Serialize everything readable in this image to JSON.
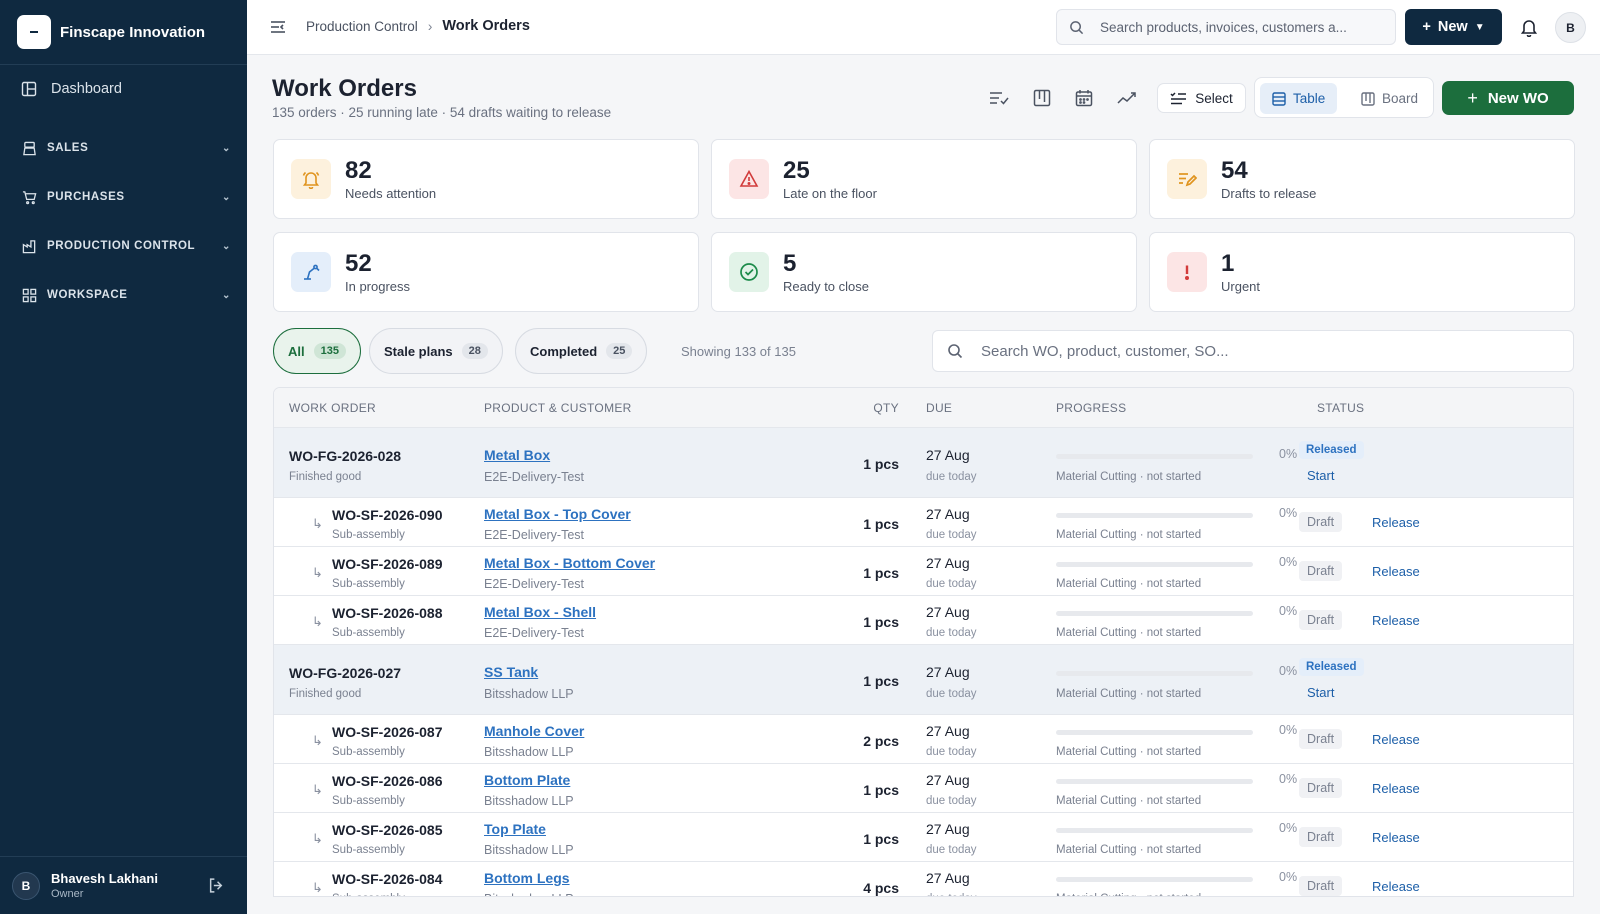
{
  "sidebar": {
    "brand": "Finscape Innovation",
    "dashboard": "Dashboard",
    "sections": [
      "SALES",
      "PURCHASES",
      "PRODUCTION CONTROL",
      "WORKSPACE"
    ],
    "user": {
      "initial": "B",
      "name": "Bhavesh Lakhani",
      "role": "Owner"
    }
  },
  "topbar": {
    "breadcrumb": [
      "Production Control",
      "Work Orders"
    ],
    "search_placeholder": "Search products, invoices, customers a...",
    "new_label": "New",
    "avatar": "B"
  },
  "header": {
    "title": "Work Orders",
    "subtitle": "135 orders · 25 running late · 54 drafts waiting to release",
    "select_label": "Select",
    "view_table": "Table",
    "view_board": "Board",
    "new_wo": "New WO"
  },
  "stats": [
    {
      "value": "82",
      "label": "Needs attention",
      "icon": "bell-icon"
    },
    {
      "value": "25",
      "label": "Late on the floor",
      "icon": "warning-icon"
    },
    {
      "value": "54",
      "label": "Drafts to release",
      "icon": "edit-list-icon"
    },
    {
      "value": "52",
      "label": "In progress",
      "icon": "machine-icon"
    },
    {
      "value": "5",
      "label": "Ready to close",
      "icon": "check-circle-icon"
    },
    {
      "value": "1",
      "label": "Urgent",
      "icon": "exclamation-icon"
    }
  ],
  "filters": {
    "chips": [
      {
        "label": "All",
        "count": "135"
      },
      {
        "label": "Stale plans",
        "count": "28"
      },
      {
        "label": "Completed",
        "count": "25"
      }
    ],
    "showing": "Showing 133 of 135",
    "search_placeholder": "Search WO, product, customer, SO..."
  },
  "table": {
    "columns": [
      "WORK ORDER",
      "PRODUCT & CUSTOMER",
      "QTY",
      "DUE",
      "PROGRESS",
      "STATUS"
    ],
    "rows": [
      {
        "wo": "WO-FG-2026-028",
        "type": "Finished good",
        "product": "Metal Box",
        "customer": "E2E-Delivery-Test",
        "qty": "1 pcs",
        "due": "27 Aug",
        "due_sub": "due today",
        "pct": "0%",
        "stage": "Material Cutting · not started",
        "status": "Released",
        "action": "Start"
      },
      {
        "wo": "WO-SF-2026-090",
        "type": "Sub-assembly",
        "product": "Metal Box - Top Cover",
        "customer": "E2E-Delivery-Test",
        "qty": "1 pcs",
        "due": "27 Aug",
        "due_sub": "due today",
        "pct": "0%",
        "stage": "Material Cutting · not started",
        "status": "Draft",
        "action": "Release"
      },
      {
        "wo": "WO-SF-2026-089",
        "type": "Sub-assembly",
        "product": "Metal Box - Bottom Cover",
        "customer": "E2E-Delivery-Test",
        "qty": "1 pcs",
        "due": "27 Aug",
        "due_sub": "due today",
        "pct": "0%",
        "stage": "Material Cutting · not started",
        "status": "Draft",
        "action": "Release"
      },
      {
        "wo": "WO-SF-2026-088",
        "type": "Sub-assembly",
        "product": "Metal Box - Shell",
        "customer": "E2E-Delivery-Test",
        "qty": "1 pcs",
        "due": "27 Aug",
        "due_sub": "due today",
        "pct": "0%",
        "stage": "Material Cutting · not started",
        "status": "Draft",
        "action": "Release"
      },
      {
        "wo": "WO-FG-2026-027",
        "type": "Finished good",
        "product": "SS Tank",
        "customer": "Bitsshadow LLP",
        "qty": "1 pcs",
        "due": "27 Aug",
        "due_sub": "due today",
        "pct": "0%",
        "stage": "Material Cutting · not started",
        "status": "Released",
        "action": "Start"
      },
      {
        "wo": "WO-SF-2026-087",
        "type": "Sub-assembly",
        "product": "Manhole Cover",
        "customer": "Bitsshadow LLP",
        "qty": "2 pcs",
        "due": "27 Aug",
        "due_sub": "due today",
        "pct": "0%",
        "stage": "Material Cutting · not started",
        "status": "Draft",
        "action": "Release"
      },
      {
        "wo": "WO-SF-2026-086",
        "type": "Sub-assembly",
        "product": "Bottom Plate",
        "customer": "Bitsshadow LLP",
        "qty": "1 pcs",
        "due": "27 Aug",
        "due_sub": "due today",
        "pct": "0%",
        "stage": "Material Cutting · not started",
        "status": "Draft",
        "action": "Release"
      },
      {
        "wo": "WO-SF-2026-085",
        "type": "Sub-assembly",
        "product": "Top Plate",
        "customer": "Bitsshadow LLP",
        "qty": "1 pcs",
        "due": "27 Aug",
        "due_sub": "due today",
        "pct": "0%",
        "stage": "Material Cutting · not started",
        "status": "Draft",
        "action": "Release"
      },
      {
        "wo": "WO-SF-2026-084",
        "type": "Sub-assembly",
        "product": "Bottom Legs",
        "customer": "Bitsshadow LLP",
        "qty": "4 pcs",
        "due": "27 Aug",
        "due_sub": "due today",
        "pct": "0%",
        "stage": "Material Cutting · not started",
        "status": "Draft",
        "action": "Release"
      }
    ]
  }
}
